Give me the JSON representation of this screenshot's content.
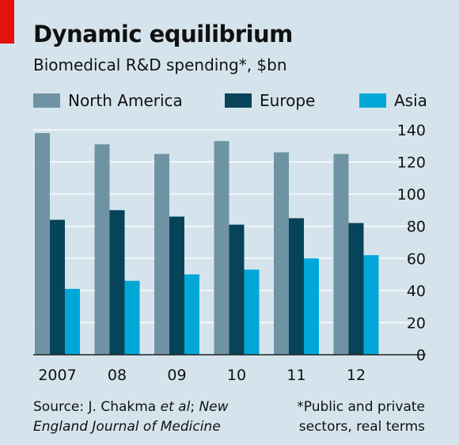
{
  "header": {
    "title": "Dynamic equilibrium",
    "subtitle": "Biomedical R&D spending*, $bn"
  },
  "footer": {
    "source_prefix": "Source: J. Chakma ",
    "source_etal": "et al",
    "source_sep": "; ",
    "source_journal_line1": "New",
    "source_journal_line2": "England Journal of Medicine",
    "note_line1": "*Public and private",
    "note_line2": "sectors, real terms"
  },
  "colors": {
    "background": "#d5e4ec",
    "accent": "#e3120b",
    "north_america": "#6f93a4",
    "europe": "#074459",
    "asia": "#00a7d7",
    "grid": "#ffffff"
  },
  "chart_data": {
    "type": "bar",
    "title": "Dynamic equilibrium",
    "subtitle": "Biomedical R&D spending*, $bn",
    "categories": [
      "2007",
      "08",
      "09",
      "10",
      "11",
      "12"
    ],
    "series": [
      {
        "name": "North America",
        "color": "#6f93a4",
        "values": [
          138,
          131,
          125,
          133,
          126,
          125
        ]
      },
      {
        "name": "Europe",
        "color": "#074459",
        "values": [
          84,
          90,
          86,
          81,
          85,
          82
        ]
      },
      {
        "name": "Asia",
        "color": "#00a7d7",
        "values": [
          41,
          46,
          50,
          53,
          60,
          62
        ]
      }
    ],
    "ylim": [
      0,
      140
    ],
    "yticks": [
      0,
      20,
      40,
      60,
      80,
      100,
      120,
      140
    ],
    "y_axis_side": "right",
    "grid": true,
    "legend_position": "top"
  }
}
